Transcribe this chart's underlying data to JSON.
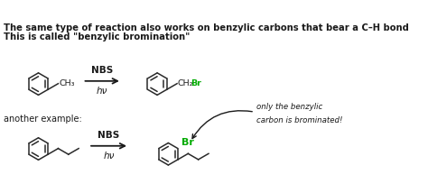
{
  "title1": "The same type of reaction also works on benzylic carbons that bear a C–H bond",
  "title2": "This is called \"benzylic bromination\"",
  "nbs_label": "NBS",
  "hv_label": "hν",
  "another_example": "another example:",
  "annotation_line1": "only the benzylic",
  "annotation_line2": "carbon is brominated!",
  "ch3_label": "CH₃",
  "ch2_label": "CH₂",
  "br_label_black": "",
  "br_label_green": "Br",
  "bg_color": "#ffffff",
  "text_color": "#1a1a1a",
  "green_color": "#00aa00",
  "bond_color": "#2a2a2a",
  "font_size_title": 7.2,
  "font_size_label": 7.0,
  "font_size_chem": 6.8,
  "fig_w": 4.74,
  "fig_h": 2.14,
  "dpi": 100
}
